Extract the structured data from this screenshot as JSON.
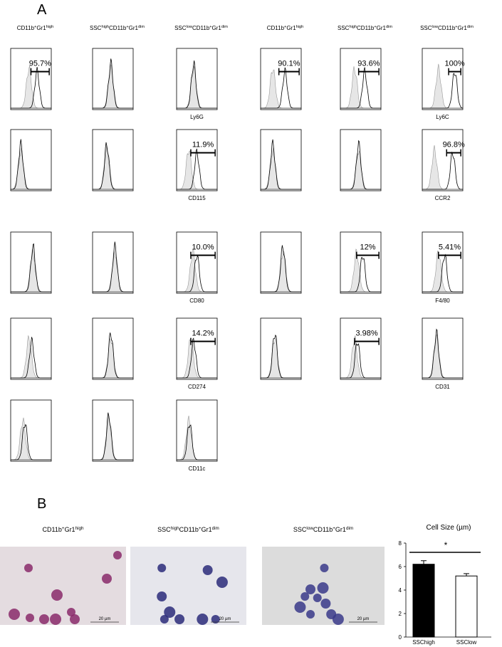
{
  "panel_a": {
    "label": "A",
    "headers": [
      [
        {
          "text": "CD11b"
        },
        {
          "sup": "+"
        },
        {
          "text": "Gr1"
        },
        {
          "sup": "high"
        }
      ],
      [
        {
          "text": "SSC"
        },
        {
          "sup": "high"
        },
        {
          "text": "CD11b"
        },
        {
          "sup": "+"
        },
        {
          "text": "Gr1"
        },
        {
          "sup": "dim"
        }
      ],
      [
        {
          "text": "SSC"
        },
        {
          "sup": "low"
        },
        {
          "text": "CD11b"
        },
        {
          "sup": "+"
        },
        {
          "text": "Gr1"
        },
        {
          "sup": "dim"
        }
      ],
      [
        {
          "text": "CD11b"
        },
        {
          "sup": "+"
        },
        {
          "text": "Gr1"
        },
        {
          "sup": "high"
        }
      ],
      [
        {
          "text": "SSC"
        },
        {
          "sup": "high"
        },
        {
          "text": "CD11b"
        },
        {
          "sup": "+"
        },
        {
          "text": "Gr1"
        },
        {
          "sup": "dim"
        }
      ],
      [
        {
          "text": "SSC"
        },
        {
          "sup": "low"
        },
        {
          "text": "CD11b"
        },
        {
          "sup": "+"
        },
        {
          "text": "Gr1"
        },
        {
          "sup": "dim"
        }
      ]
    ],
    "rows": [
      {
        "gates": [
          "95.7%",
          null,
          null,
          "90.1%",
          "93.6%",
          "100%"
        ],
        "markers": [
          "Ly6G",
          "Ly6C"
        ]
      },
      {
        "gates": [
          null,
          null,
          "11.9%",
          null,
          null,
          "96.8%"
        ],
        "markers": [
          "CD115",
          "CCR2"
        ]
      },
      {
        "gates": [
          null,
          null,
          "10.0%",
          null,
          "12%",
          "5.41%"
        ],
        "markers": [
          "CD80",
          "F4/80"
        ]
      },
      {
        "gates": [
          null,
          null,
          "14.2%",
          null,
          "3.98%",
          null
        ],
        "markers": [
          "CD274",
          "CD31"
        ]
      },
      {
        "gates": [
          null,
          null,
          null
        ],
        "markers": [
          "CD11c"
        ]
      }
    ]
  },
  "panel_b": {
    "label": "B",
    "headers": [
      [
        {
          "text": "CD11b"
        },
        {
          "sup": "+"
        },
        {
          "text": "Gr1"
        },
        {
          "sup": "high"
        }
      ],
      [
        {
          "text": "SSC"
        },
        {
          "sup": "high"
        },
        {
          "text": "CD11b"
        },
        {
          "sup": "+"
        },
        {
          "text": "Gr1"
        },
        {
          "sup": "dim"
        }
      ],
      [
        {
          "text": "SSC"
        },
        {
          "sup": "low"
        },
        {
          "text": "CD11b"
        },
        {
          "sup": "+"
        },
        {
          "text": "Gr1"
        },
        {
          "sup": "dim"
        }
      ]
    ],
    "scale_bars": [
      "20 µm",
      "20 µm",
      "20 µm"
    ]
  },
  "chart_data": {
    "type": "bar",
    "title": "Cell Size (µm)",
    "categories": [
      "SSChigh",
      "SSClow"
    ],
    "values": [
      6.2,
      5.2
    ],
    "errors": [
      0.3,
      0.2
    ],
    "colors": [
      "#000000",
      "#ffffff"
    ],
    "ylim": [
      0,
      8
    ],
    "yticks": [
      0,
      2,
      4,
      6,
      8
    ],
    "significance": "*"
  }
}
